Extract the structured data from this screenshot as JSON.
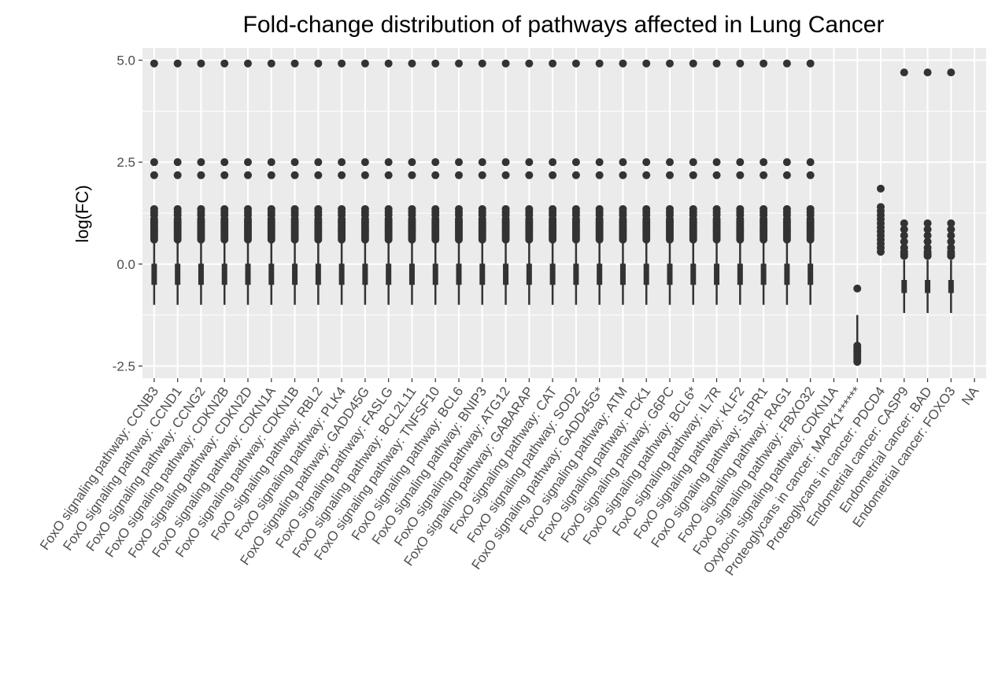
{
  "chart_data": {
    "type": "boxplot",
    "title": "Fold-change distribution of pathways affected in Lung Cancer",
    "xlabel": "",
    "ylabel": "log(FC)",
    "ylim": [
      -2.8,
      5.3
    ],
    "yticks": [
      -2.5,
      0.0,
      2.5,
      5.0
    ],
    "ytick_labels": [
      "-2.5",
      "0.0",
      "2.5",
      "5.0"
    ],
    "grid": true,
    "legend": "none",
    "colors": {
      "panel": "#ebebeb",
      "grid": "#ffffff",
      "mark": "#333333",
      "tick_text": "#4d4d4d"
    },
    "categories": [
      "FoxO signaling pathway: CCNB3",
      "FoxO signaling pathway: CCND1",
      "FoxO signaling pathway: CCNG2",
      "FoxO signaling pathway: CDKN2B",
      "FoxO signaling pathway: CDKN2D",
      "FoxO signaling pathway: CDKN1A",
      "FoxO signaling pathway: CDKN1B",
      "FoxO signaling pathway: RBL2",
      "FoxO signaling pathway: PLK4",
      "FoxO signaling pathway: GADD45G",
      "FoxO signaling pathway: FASLG",
      "FoxO signaling pathway: BCL2L11",
      "FoxO signaling pathway: TNFSF10",
      "FoxO signaling pathway: BCL6",
      "FoxO signaling pathway: BNIP3",
      "FoxO signaling pathway: ATG12",
      "FoxO signaling pathway: GABARAP",
      "FoxO signaling pathway: CAT",
      "FoxO signaling pathway: SOD2",
      "FoxO signaling pathway: GADD45G*",
      "FoxO signaling pathway: ATM",
      "FoxO signaling pathway: PCK1",
      "FoxO signaling pathway: G6PC",
      "FoxO signaling pathway: BCL6*",
      "FoxO signaling pathway: IL7R",
      "FoxO signaling pathway: KLF2",
      "FoxO signaling pathway: S1PR1",
      "FoxO signaling pathway: RAG1",
      "FoxO signaling pathway: FBXO32",
      "Oxytocin signaling pathway: CDKN1A",
      "Proteoglycans in cancer: MAPK1******",
      "Proteoglycans in cancer: PDCD4",
      "Endometrial cancer: CASP9",
      "Endometrial cancer: BAD",
      "Endometrial cancer: FOXO3",
      "NA"
    ],
    "groups": [
      {
        "box": {
          "lower_whisker": -1.0,
          "q1": -0.5,
          "median": -0.4,
          "q3": 0.0,
          "upper_whisker": 0.55
        },
        "outliers": [
          0.6,
          0.65,
          0.7,
          0.75,
          0.8,
          0.85,
          0.9,
          0.95,
          1.0,
          1.05,
          1.1,
          1.2,
          1.27,
          1.35,
          2.18,
          2.5,
          4.92
        ]
      },
      {
        "box": {
          "lower_whisker": -1.0,
          "q1": -0.5,
          "median": -0.4,
          "q3": 0.0,
          "upper_whisker": 0.55
        },
        "outliers": [
          0.6,
          0.65,
          0.7,
          0.75,
          0.8,
          0.85,
          0.9,
          0.95,
          1.0,
          1.05,
          1.1,
          1.2,
          1.27,
          1.35,
          2.18,
          2.5,
          4.92
        ]
      },
      {
        "box": {
          "lower_whisker": -1.0,
          "q1": -0.5,
          "median": -0.4,
          "q3": 0.0,
          "upper_whisker": 0.55
        },
        "outliers": [
          0.6,
          0.65,
          0.7,
          0.75,
          0.8,
          0.85,
          0.9,
          0.95,
          1.0,
          1.05,
          1.1,
          1.2,
          1.27,
          1.35,
          2.18,
          2.5,
          4.92
        ]
      },
      {
        "box": {
          "lower_whisker": -1.0,
          "q1": -0.5,
          "median": -0.4,
          "q3": 0.0,
          "upper_whisker": 0.55
        },
        "outliers": [
          0.6,
          0.65,
          0.7,
          0.75,
          0.8,
          0.85,
          0.9,
          0.95,
          1.0,
          1.05,
          1.1,
          1.2,
          1.27,
          1.35,
          2.18,
          2.5,
          4.92
        ]
      },
      {
        "box": {
          "lower_whisker": -1.0,
          "q1": -0.5,
          "median": -0.4,
          "q3": 0.0,
          "upper_whisker": 0.55
        },
        "outliers": [
          0.6,
          0.65,
          0.7,
          0.75,
          0.8,
          0.85,
          0.9,
          0.95,
          1.0,
          1.05,
          1.1,
          1.2,
          1.27,
          1.35,
          2.18,
          2.5,
          4.92
        ]
      },
      {
        "box": {
          "lower_whisker": -1.0,
          "q1": -0.5,
          "median": -0.4,
          "q3": 0.0,
          "upper_whisker": 0.55
        },
        "outliers": [
          0.6,
          0.65,
          0.7,
          0.75,
          0.8,
          0.85,
          0.9,
          0.95,
          1.0,
          1.05,
          1.1,
          1.2,
          1.27,
          1.35,
          2.18,
          2.5,
          4.92
        ]
      },
      {
        "box": {
          "lower_whisker": -1.0,
          "q1": -0.5,
          "median": -0.4,
          "q3": 0.0,
          "upper_whisker": 0.55
        },
        "outliers": [
          0.6,
          0.65,
          0.7,
          0.75,
          0.8,
          0.85,
          0.9,
          0.95,
          1.0,
          1.05,
          1.1,
          1.2,
          1.27,
          1.35,
          2.18,
          2.5,
          4.92
        ]
      },
      {
        "box": {
          "lower_whisker": -1.0,
          "q1": -0.5,
          "median": -0.4,
          "q3": 0.0,
          "upper_whisker": 0.55
        },
        "outliers": [
          0.6,
          0.65,
          0.7,
          0.75,
          0.8,
          0.85,
          0.9,
          0.95,
          1.0,
          1.05,
          1.1,
          1.2,
          1.27,
          1.35,
          2.18,
          2.5,
          4.92
        ]
      },
      {
        "box": {
          "lower_whisker": -1.0,
          "q1": -0.5,
          "median": -0.4,
          "q3": 0.0,
          "upper_whisker": 0.55
        },
        "outliers": [
          0.6,
          0.65,
          0.7,
          0.75,
          0.8,
          0.85,
          0.9,
          0.95,
          1.0,
          1.05,
          1.1,
          1.2,
          1.27,
          1.35,
          2.18,
          2.5,
          4.92
        ]
      },
      {
        "box": {
          "lower_whisker": -1.0,
          "q1": -0.5,
          "median": -0.4,
          "q3": 0.0,
          "upper_whisker": 0.55
        },
        "outliers": [
          0.6,
          0.65,
          0.7,
          0.75,
          0.8,
          0.85,
          0.9,
          0.95,
          1.0,
          1.05,
          1.1,
          1.2,
          1.27,
          1.35,
          2.18,
          2.5,
          4.92
        ]
      },
      {
        "box": {
          "lower_whisker": -1.0,
          "q1": -0.5,
          "median": -0.4,
          "q3": 0.0,
          "upper_whisker": 0.55
        },
        "outliers": [
          0.6,
          0.65,
          0.7,
          0.75,
          0.8,
          0.85,
          0.9,
          0.95,
          1.0,
          1.05,
          1.1,
          1.2,
          1.27,
          1.35,
          2.18,
          2.5,
          4.92
        ]
      },
      {
        "box": {
          "lower_whisker": -1.0,
          "q1": -0.5,
          "median": -0.4,
          "q3": 0.0,
          "upper_whisker": 0.55
        },
        "outliers": [
          0.6,
          0.65,
          0.7,
          0.75,
          0.8,
          0.85,
          0.9,
          0.95,
          1.0,
          1.05,
          1.1,
          1.2,
          1.27,
          1.35,
          2.18,
          2.5,
          4.92
        ]
      },
      {
        "box": {
          "lower_whisker": -1.0,
          "q1": -0.5,
          "median": -0.4,
          "q3": 0.0,
          "upper_whisker": 0.55
        },
        "outliers": [
          0.6,
          0.65,
          0.7,
          0.75,
          0.8,
          0.85,
          0.9,
          0.95,
          1.0,
          1.05,
          1.1,
          1.2,
          1.27,
          1.35,
          2.18,
          2.5,
          4.92
        ]
      },
      {
        "box": {
          "lower_whisker": -1.0,
          "q1": -0.5,
          "median": -0.4,
          "q3": 0.0,
          "upper_whisker": 0.55
        },
        "outliers": [
          0.6,
          0.65,
          0.7,
          0.75,
          0.8,
          0.85,
          0.9,
          0.95,
          1.0,
          1.05,
          1.1,
          1.2,
          1.27,
          1.35,
          2.18,
          2.5,
          4.92
        ]
      },
      {
        "box": {
          "lower_whisker": -1.0,
          "q1": -0.5,
          "median": -0.4,
          "q3": 0.0,
          "upper_whisker": 0.55
        },
        "outliers": [
          0.6,
          0.65,
          0.7,
          0.75,
          0.8,
          0.85,
          0.9,
          0.95,
          1.0,
          1.05,
          1.1,
          1.2,
          1.27,
          1.35,
          2.18,
          2.5,
          4.92
        ]
      },
      {
        "box": {
          "lower_whisker": -1.0,
          "q1": -0.5,
          "median": -0.4,
          "q3": 0.0,
          "upper_whisker": 0.55
        },
        "outliers": [
          0.6,
          0.65,
          0.7,
          0.75,
          0.8,
          0.85,
          0.9,
          0.95,
          1.0,
          1.05,
          1.1,
          1.2,
          1.27,
          1.35,
          2.18,
          2.5,
          4.92
        ]
      },
      {
        "box": {
          "lower_whisker": -1.0,
          "q1": -0.5,
          "median": -0.4,
          "q3": 0.0,
          "upper_whisker": 0.55
        },
        "outliers": [
          0.6,
          0.65,
          0.7,
          0.75,
          0.8,
          0.85,
          0.9,
          0.95,
          1.0,
          1.05,
          1.1,
          1.2,
          1.27,
          1.35,
          2.18,
          2.5,
          4.92
        ]
      },
      {
        "box": {
          "lower_whisker": -1.0,
          "q1": -0.5,
          "median": -0.4,
          "q3": 0.0,
          "upper_whisker": 0.55
        },
        "outliers": [
          0.6,
          0.65,
          0.7,
          0.75,
          0.8,
          0.85,
          0.9,
          0.95,
          1.0,
          1.05,
          1.1,
          1.2,
          1.27,
          1.35,
          2.18,
          2.5,
          4.92
        ]
      },
      {
        "box": {
          "lower_whisker": -1.0,
          "q1": -0.5,
          "median": -0.4,
          "q3": 0.0,
          "upper_whisker": 0.55
        },
        "outliers": [
          0.6,
          0.65,
          0.7,
          0.75,
          0.8,
          0.85,
          0.9,
          0.95,
          1.0,
          1.05,
          1.1,
          1.2,
          1.27,
          1.35,
          2.18,
          2.5,
          4.92
        ]
      },
      {
        "box": {
          "lower_whisker": -1.0,
          "q1": -0.5,
          "median": -0.4,
          "q3": 0.0,
          "upper_whisker": 0.55
        },
        "outliers": [
          0.6,
          0.65,
          0.7,
          0.75,
          0.8,
          0.85,
          0.9,
          0.95,
          1.0,
          1.05,
          1.1,
          1.2,
          1.27,
          1.35,
          2.18,
          2.5,
          4.92
        ]
      },
      {
        "box": {
          "lower_whisker": -1.0,
          "q1": -0.5,
          "median": -0.4,
          "q3": 0.0,
          "upper_whisker": 0.55
        },
        "outliers": [
          0.6,
          0.65,
          0.7,
          0.75,
          0.8,
          0.85,
          0.9,
          0.95,
          1.0,
          1.05,
          1.1,
          1.2,
          1.27,
          1.35,
          2.18,
          2.5,
          4.92
        ]
      },
      {
        "box": {
          "lower_whisker": -1.0,
          "q1": -0.5,
          "median": -0.4,
          "q3": 0.0,
          "upper_whisker": 0.55
        },
        "outliers": [
          0.6,
          0.65,
          0.7,
          0.75,
          0.8,
          0.85,
          0.9,
          0.95,
          1.0,
          1.05,
          1.1,
          1.2,
          1.27,
          1.35,
          2.18,
          2.5,
          4.92
        ]
      },
      {
        "box": {
          "lower_whisker": -1.0,
          "q1": -0.5,
          "median": -0.4,
          "q3": 0.0,
          "upper_whisker": 0.55
        },
        "outliers": [
          0.6,
          0.65,
          0.7,
          0.75,
          0.8,
          0.85,
          0.9,
          0.95,
          1.0,
          1.05,
          1.1,
          1.2,
          1.27,
          1.35,
          2.18,
          2.5,
          4.92
        ]
      },
      {
        "box": {
          "lower_whisker": -1.0,
          "q1": -0.5,
          "median": -0.4,
          "q3": 0.0,
          "upper_whisker": 0.55
        },
        "outliers": [
          0.6,
          0.65,
          0.7,
          0.75,
          0.8,
          0.85,
          0.9,
          0.95,
          1.0,
          1.05,
          1.1,
          1.2,
          1.27,
          1.35,
          2.18,
          2.5,
          4.92
        ]
      },
      {
        "box": {
          "lower_whisker": -1.0,
          "q1": -0.5,
          "median": -0.4,
          "q3": 0.0,
          "upper_whisker": 0.55
        },
        "outliers": [
          0.6,
          0.65,
          0.7,
          0.75,
          0.8,
          0.85,
          0.9,
          0.95,
          1.0,
          1.05,
          1.1,
          1.2,
          1.27,
          1.35,
          2.18,
          2.5,
          4.92
        ]
      },
      {
        "box": {
          "lower_whisker": -1.0,
          "q1": -0.5,
          "median": -0.4,
          "q3": 0.0,
          "upper_whisker": 0.55
        },
        "outliers": [
          0.6,
          0.65,
          0.7,
          0.75,
          0.8,
          0.85,
          0.9,
          0.95,
          1.0,
          1.05,
          1.1,
          1.2,
          1.27,
          1.35,
          2.18,
          2.5,
          4.92
        ]
      },
      {
        "box": {
          "lower_whisker": -1.0,
          "q1": -0.5,
          "median": -0.4,
          "q3": 0.0,
          "upper_whisker": 0.55
        },
        "outliers": [
          0.6,
          0.65,
          0.7,
          0.75,
          0.8,
          0.85,
          0.9,
          0.95,
          1.0,
          1.05,
          1.1,
          1.2,
          1.27,
          1.35,
          2.18,
          2.5,
          4.92
        ]
      },
      {
        "box": {
          "lower_whisker": -1.0,
          "q1": -0.5,
          "median": -0.4,
          "q3": 0.0,
          "upper_whisker": 0.55
        },
        "outliers": [
          0.6,
          0.65,
          0.7,
          0.75,
          0.8,
          0.85,
          0.9,
          0.95,
          1.0,
          1.05,
          1.1,
          1.2,
          1.27,
          1.35,
          2.18,
          2.5,
          4.92
        ]
      },
      {
        "box": {
          "lower_whisker": -1.0,
          "q1": -0.5,
          "median": -0.4,
          "q3": 0.0,
          "upper_whisker": 0.55
        },
        "outliers": [
          0.6,
          0.65,
          0.7,
          0.75,
          0.8,
          0.85,
          0.9,
          0.95,
          1.0,
          1.05,
          1.1,
          1.2,
          1.27,
          1.35,
          2.18,
          2.5,
          4.92
        ]
      },
      null,
      {
        "box": {
          "lower_whisker": -2.45,
          "q1": -2.4,
          "median": -2.3,
          "q3": -2.1,
          "upper_whisker": -1.25
        },
        "outliers": [
          -0.6,
          -2.0,
          -2.05,
          -2.1,
          -2.15,
          -2.2,
          -2.25,
          -2.3,
          -2.35,
          -2.4
        ]
      },
      {
        "box": {
          "lower_whisker": 0.3,
          "q1": 0.55,
          "median": 0.8,
          "q3": 1.1,
          "upper_whisker": 1.45
        },
        "outliers": [
          0.3,
          0.4,
          0.5,
          0.6,
          0.7,
          0.8,
          0.9,
          1.0,
          1.1,
          1.2,
          1.3,
          1.4,
          1.85
        ]
      },
      {
        "box": {
          "lower_whisker": -1.2,
          "q1": -0.7,
          "median": -0.55,
          "q3": -0.4,
          "upper_whisker": 0.1
        },
        "outliers": [
          0.2,
          0.25,
          0.3,
          0.4,
          0.55,
          0.7,
          0.85,
          1.0,
          4.7
        ]
      },
      {
        "box": {
          "lower_whisker": -1.2,
          "q1": -0.7,
          "median": -0.55,
          "q3": -0.4,
          "upper_whisker": 0.1
        },
        "outliers": [
          0.2,
          0.25,
          0.3,
          0.4,
          0.55,
          0.7,
          0.85,
          1.0,
          4.7
        ]
      },
      {
        "box": {
          "lower_whisker": -1.2,
          "q1": -0.7,
          "median": -0.55,
          "q3": -0.4,
          "upper_whisker": 0.1
        },
        "outliers": [
          0.2,
          0.25,
          0.3,
          0.4,
          0.55,
          0.7,
          0.85,
          1.0,
          4.7
        ]
      },
      null
    ]
  }
}
